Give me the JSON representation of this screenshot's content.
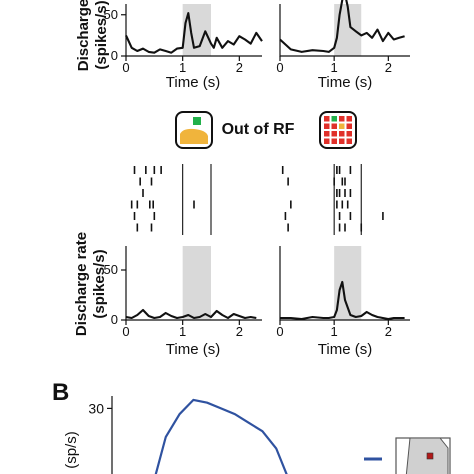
{
  "figure": {
    "middle_label": "Out of RF",
    "panel_b_letter": "B"
  },
  "colors": {
    "trace": "#111111",
    "shade": "#d9d9d9",
    "panel_b_trace": "#2f52a0",
    "icon_green": "#22b04a",
    "icon_orange": "#f0b43c",
    "icon_red": "#e0302a"
  },
  "chart_data": [
    {
      "type": "line",
      "panel": "top-left",
      "xlabel": "Time (s)",
      "ylabel": "Discharge rate (spikes/s)",
      "ylabel_lines": [
        "Discharge",
        "(spikes/s)"
      ],
      "xticks": [
        0,
        1,
        2
      ],
      "yticks": [
        0,
        50
      ],
      "xlim": [
        0,
        2.4
      ],
      "ylim": [
        0,
        80
      ],
      "shaded_interval": [
        1.0,
        1.5
      ],
      "x": [
        0,
        0.1,
        0.2,
        0.3,
        0.4,
        0.5,
        0.6,
        0.7,
        0.8,
        0.9,
        1.0,
        1.05,
        1.1,
        1.15,
        1.2,
        1.3,
        1.4,
        1.5,
        1.55,
        1.6,
        1.7,
        1.8,
        1.9,
        2.0,
        2.1,
        2.2,
        2.3,
        2.4
      ],
      "values": [
        25,
        10,
        6,
        9,
        5,
        4,
        8,
        6,
        4,
        9,
        10,
        40,
        52,
        28,
        10,
        12,
        30,
        15,
        10,
        22,
        10,
        18,
        14,
        24,
        20,
        15,
        28,
        18
      ]
    },
    {
      "type": "line",
      "panel": "top-right",
      "xlabel": "Time (s)",
      "xticks": [
        0,
        1,
        2
      ],
      "xlim": [
        0,
        2.4
      ],
      "ylim": [
        0,
        80
      ],
      "shaded_interval": [
        1.0,
        1.5
      ],
      "x": [
        0,
        0.2,
        0.4,
        0.6,
        0.8,
        0.9,
        1.0,
        1.05,
        1.1,
        1.15,
        1.2,
        1.25,
        1.3,
        1.4,
        1.5,
        1.6,
        1.7,
        1.8,
        1.9,
        2.0,
        2.1,
        2.2,
        2.3
      ],
      "values": [
        20,
        8,
        5,
        7,
        6,
        5,
        10,
        22,
        50,
        68,
        75,
        60,
        35,
        30,
        25,
        28,
        22,
        32,
        18,
        28,
        20,
        22,
        24
      ]
    },
    {
      "type": "line",
      "panel": "bottom-left",
      "xlabel": "Time (s)",
      "ylabel": "Discharge rate (spikes/s)",
      "ylabel_lines": [
        "Discharge rate",
        "(spikes/s)"
      ],
      "xticks": [
        0,
        1,
        2
      ],
      "yticks": [
        0,
        50
      ],
      "xlim": [
        0,
        2.4
      ],
      "ylim": [
        0,
        80
      ],
      "shaded_interval": [
        1.0,
        1.5
      ],
      "x": [
        0,
        0.1,
        0.2,
        0.3,
        0.4,
        0.5,
        0.6,
        0.7,
        0.8,
        0.9,
        1.0,
        1.1,
        1.2,
        1.3,
        1.4,
        1.5,
        1.6,
        1.7,
        1.8,
        1.9,
        2.0,
        2.1,
        2.2,
        2.3
      ],
      "values": [
        3,
        2,
        5,
        10,
        4,
        2,
        3,
        7,
        4,
        2,
        3,
        5,
        2,
        3,
        6,
        3,
        9,
        5,
        2,
        6,
        4,
        2,
        3,
        2
      ]
    },
    {
      "type": "line",
      "panel": "bottom-right",
      "xlabel": "Time (s)",
      "xticks": [
        0,
        1,
        2
      ],
      "xlim": [
        0,
        2.4
      ],
      "ylim": [
        0,
        80
      ],
      "shaded_interval": [
        1.0,
        1.5
      ],
      "x": [
        0,
        0.2,
        0.4,
        0.6,
        0.8,
        0.9,
        1.0,
        1.05,
        1.1,
        1.15,
        1.2,
        1.3,
        1.4,
        1.5,
        1.6,
        1.7,
        1.8,
        1.9,
        2.0,
        2.1,
        2.3
      ],
      "values": [
        2,
        2,
        1,
        3,
        2,
        2,
        3,
        10,
        30,
        38,
        20,
        5,
        3,
        4,
        8,
        5,
        3,
        2,
        1,
        2,
        2
      ]
    },
    {
      "type": "line",
      "panel": "B",
      "ylabel": "(sp/s)",
      "yticks": [
        30
      ],
      "ylim": [
        0,
        34
      ],
      "x": [
        0,
        0.1,
        0.2,
        0.3,
        0.4,
        0.5,
        0.6,
        0.7,
        0.8,
        0.9,
        1.0
      ],
      "values": [
        2,
        20,
        28,
        33,
        32,
        30,
        28,
        25,
        22,
        16,
        4
      ]
    }
  ],
  "rasters": {
    "left": {
      "event_times": [
        1.0,
        1.5
      ],
      "trials": [
        [
          0.15,
          0.35,
          0.5,
          0.62
        ],
        [
          0.25,
          0.45
        ],
        [
          0.3
        ],
        [
          0.1,
          0.2,
          0.42,
          0.48,
          1.2
        ],
        [
          0.15,
          0.5
        ],
        [
          0.2,
          0.45
        ]
      ]
    },
    "right": {
      "event_times": [
        1.0,
        1.5
      ],
      "trials": [
        [
          0.05,
          1.05,
          1.1,
          1.3
        ],
        [
          0.15,
          1.0,
          1.15,
          1.2
        ],
        [
          1.05,
          1.1,
          1.2,
          1.3
        ],
        [
          0.2,
          1.05,
          1.15,
          1.25
        ],
        [
          0.1,
          1.1,
          1.3,
          1.9
        ],
        [
          0.15,
          1.1,
          1.2,
          1.5
        ]
      ]
    }
  }
}
